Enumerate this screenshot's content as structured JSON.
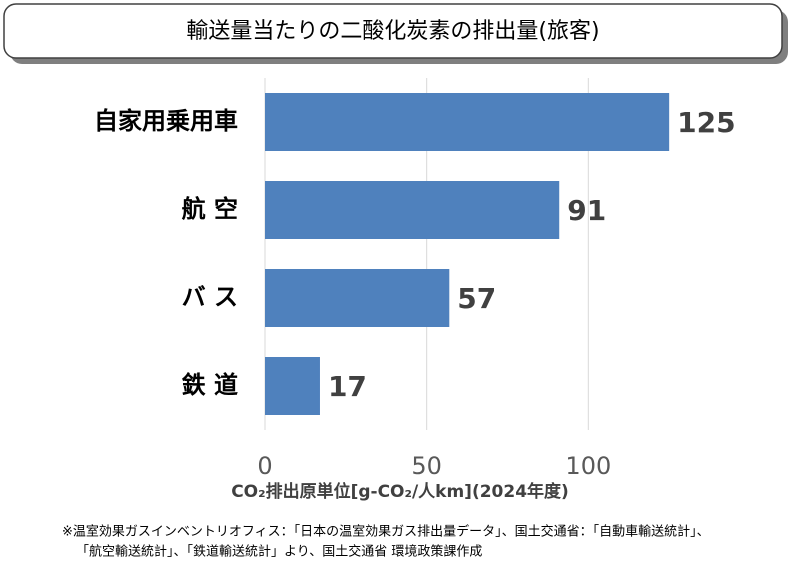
{
  "chart_data": {
    "type": "bar",
    "orientation": "horizontal",
    "title": "輸送量当たりの二酸化炭素の排出量(旅客)",
    "categories": [
      "自家用乗用車",
      "航 空",
      "バ ス",
      "鉄 道"
    ],
    "values": [
      125,
      91,
      57,
      17
    ],
    "color": "#4f81bd",
    "xlim": [
      0,
      150
    ],
    "xticks": [
      0,
      50,
      100
    ],
    "grid": true,
    "x_label": "CO₂排出原単位[g-CO₂/人km](2024年度)",
    "footnote": [
      "※温室効果ガスインベントリオフィス：「日本の温室効果ガス排出量データ」、国土交通省：「自動車輸送統計」、",
      "「航空輸送統計」、「鉄道輸送統計」より、国土交通省 環境政策課作成"
    ]
  }
}
